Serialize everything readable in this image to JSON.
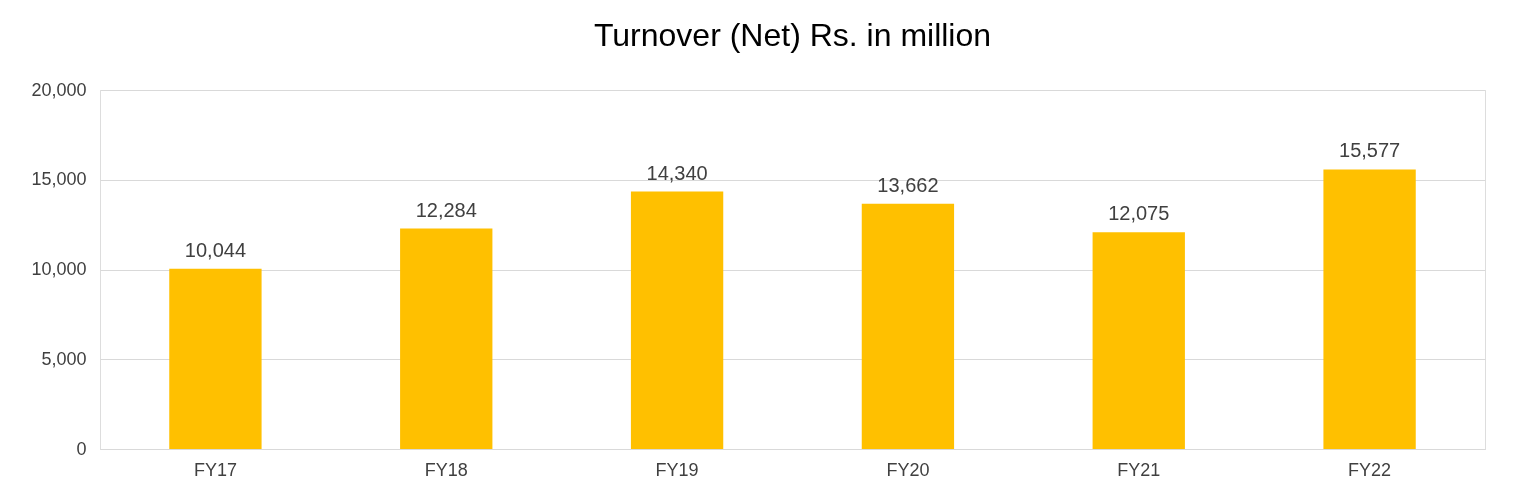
{
  "chart_data": {
    "type": "bar",
    "title": "Turnover (Net) Rs. in million",
    "categories": [
      "FY17",
      "FY18",
      "FY19",
      "FY20",
      "FY21",
      "FY22"
    ],
    "values": [
      10044,
      12284,
      14340,
      13662,
      12075,
      15577
    ],
    "color": "#ffc000",
    "value_labels": [
      "10,044",
      "12,284",
      "14,340",
      "13,662",
      "12,075",
      "15,577"
    ],
    "ylim": [
      0,
      20000
    ],
    "yticks": [
      0,
      {
        "value": 5000,
        "label": "5,000"
      },
      {
        "value": 10000,
        "label": "10,000"
      },
      {
        "value": 15000,
        "label": "15,000"
      },
      {
        "value": 20000,
        "label": "20,000"
      }
    ],
    "grid": "y"
  }
}
